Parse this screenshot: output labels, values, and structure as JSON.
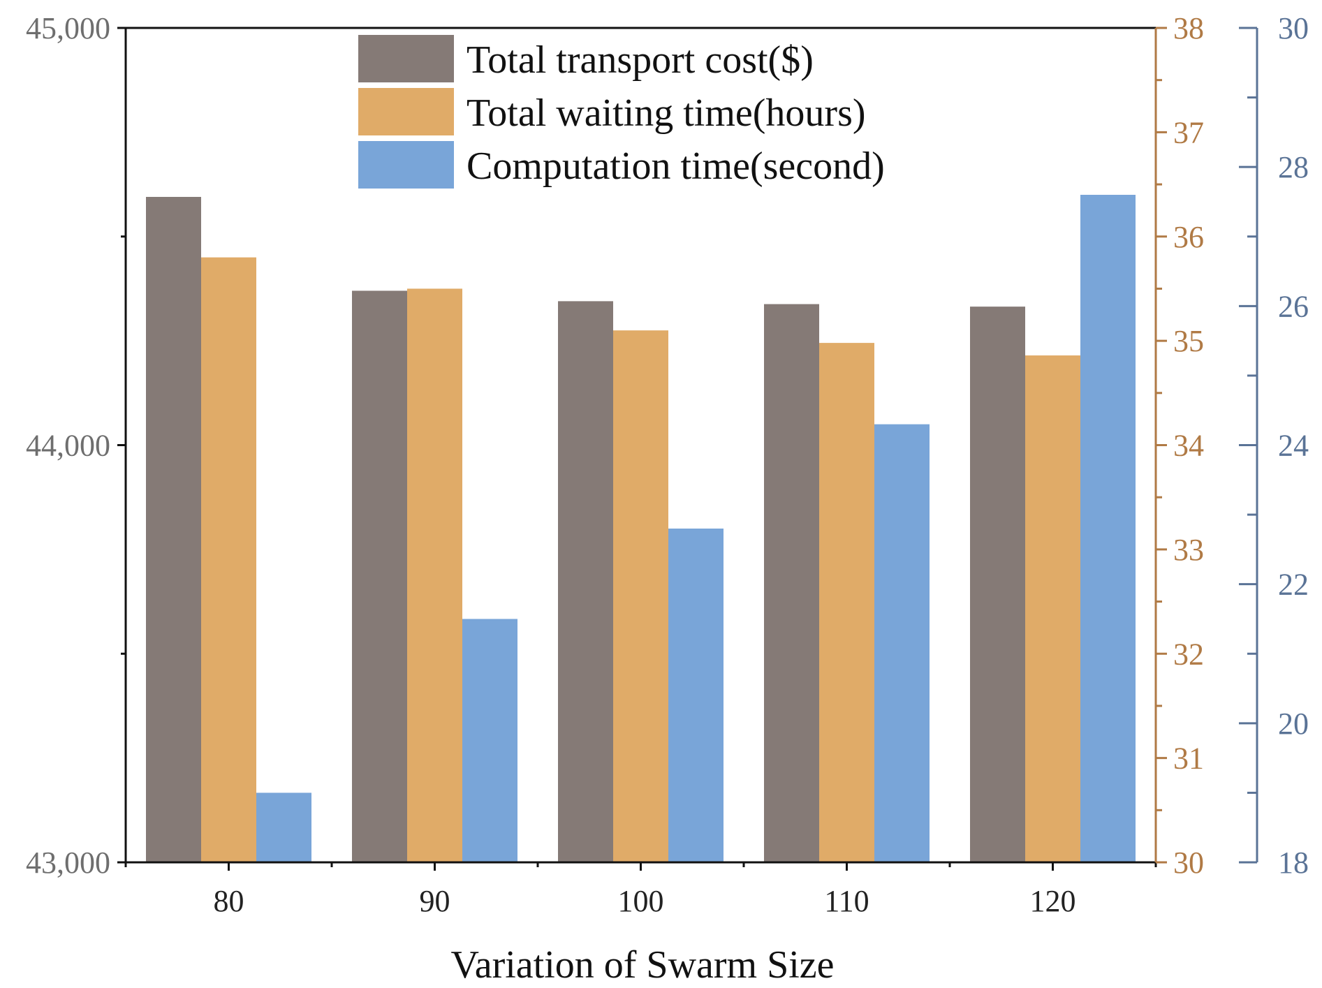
{
  "chart_data": {
    "type": "bar",
    "title": "",
    "xlabel": "Variation of Swarm Size",
    "categories": [
      "80",
      "90",
      "100",
      "110",
      "120"
    ],
    "series": [
      {
        "name": "Total transport cost($)",
        "axis": "left",
        "color": "#857a76",
        "values": [
          44595,
          44370,
          44345,
          44338,
          44332
        ]
      },
      {
        "name": "Total waiting time(hours)",
        "axis": "right1",
        "color": "#e0ab68",
        "values": [
          35.8,
          35.5,
          35.1,
          34.98,
          34.86
        ]
      },
      {
        "name": "Computation time(second)",
        "axis": "right2",
        "color": "#79a5d8",
        "values": [
          19.0,
          21.5,
          22.8,
          24.3,
          27.6
        ]
      }
    ],
    "axes": {
      "left": {
        "min": 43000,
        "max": 45000,
        "ticks": [
          43000,
          44000,
          45000
        ],
        "tick_labels": [
          "43,000",
          "44,000",
          "45,000"
        ],
        "color": "#6e6e6e"
      },
      "right1": {
        "min": 30,
        "max": 38,
        "ticks": [
          30,
          31,
          32,
          33,
          34,
          35,
          36,
          37,
          38
        ],
        "tick_labels": [
          "30",
          "31",
          "32",
          "33",
          "34",
          "35",
          "36",
          "37",
          "38"
        ],
        "color": "#b07a45"
      },
      "right2": {
        "min": 18,
        "max": 30,
        "ticks": [
          18,
          20,
          22,
          24,
          26,
          28,
          30
        ],
        "tick_labels": [
          "18",
          "20",
          "22",
          "24",
          "26",
          "28",
          "30"
        ],
        "color": "#5a7396"
      }
    },
    "legend": "top-center"
  }
}
